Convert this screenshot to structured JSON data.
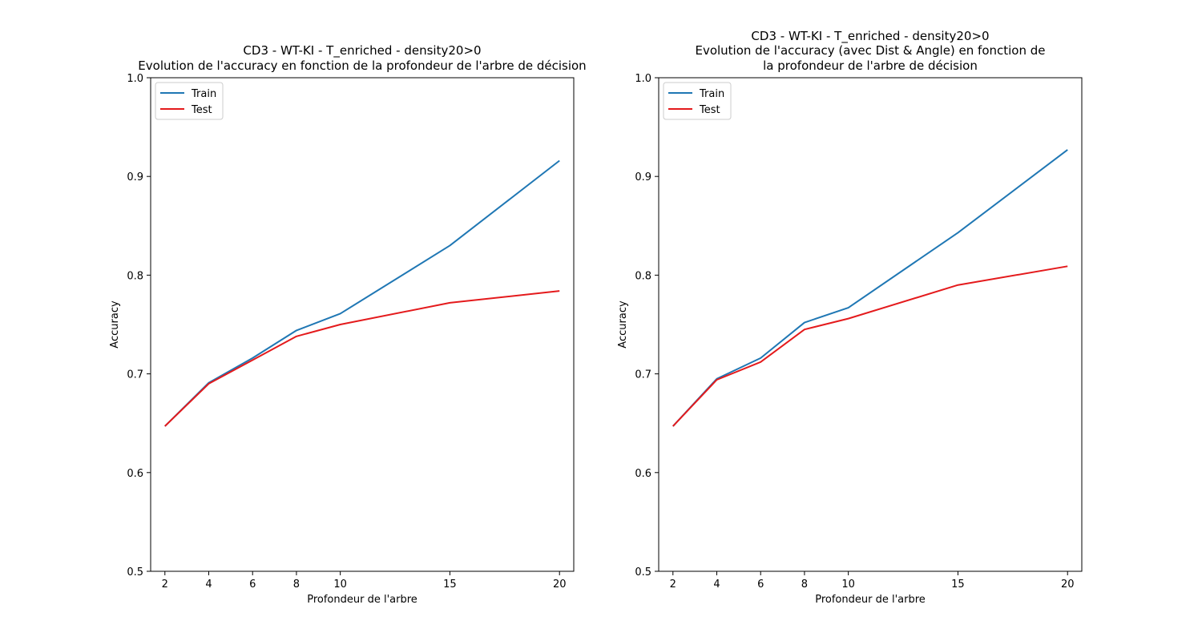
{
  "chart_data": [
    {
      "type": "line",
      "title": "CD3 - WT-KI - T_enriched - density20>0",
      "subtitle": "Evolution de l'accuracy en fonction de la profondeur de l'arbre de décision",
      "xlabel": "Profondeur de l'arbre",
      "ylabel": "Accuracy",
      "xlim": [
        1.35,
        20.65
      ],
      "ylim": [
        0.5,
        1.0
      ],
      "x": [
        2,
        4,
        6,
        8,
        10,
        15,
        20
      ],
      "xticks": [
        "2",
        "4",
        "6",
        "8",
        "10",
        "15",
        "20"
      ],
      "yticks": [
        "0.5",
        "0.6",
        "0.7",
        "0.8",
        "0.9",
        "1.0"
      ],
      "legend_position": "top-left",
      "grid": false,
      "series": [
        {
          "name": "Train",
          "color": "#1f77b4",
          "values": [
            0.647,
            0.691,
            0.716,
            0.744,
            0.761,
            0.83,
            0.916
          ]
        },
        {
          "name": "Test",
          "color": "#e41a1c",
          "values": [
            0.647,
            0.69,
            0.714,
            0.738,
            0.75,
            0.772,
            0.784
          ]
        }
      ]
    },
    {
      "type": "line",
      "title": "CD3 - WT-KI - T_enriched - density20>0",
      "subtitle": "Evolution de l'accuracy (avec Dist & Angle) en fonction de",
      "subtitle2": "la profondeur de l'arbre de décision",
      "xlabel": "Profondeur de l'arbre",
      "ylabel": "Accuracy",
      "xlim": [
        1.35,
        20.65
      ],
      "ylim": [
        0.5,
        1.0
      ],
      "x": [
        2,
        4,
        6,
        8,
        10,
        15,
        20
      ],
      "xticks": [
        "2",
        "4",
        "6",
        "8",
        "10",
        "15",
        "20"
      ],
      "yticks": [
        "0.5",
        "0.6",
        "0.7",
        "0.8",
        "0.9",
        "1.0"
      ],
      "legend_position": "top-left",
      "grid": false,
      "series": [
        {
          "name": "Train",
          "color": "#1f77b4",
          "values": [
            0.647,
            0.695,
            0.716,
            0.752,
            0.767,
            0.843,
            0.927
          ]
        },
        {
          "name": "Test",
          "color": "#e41a1c",
          "values": [
            0.647,
            0.694,
            0.712,
            0.745,
            0.756,
            0.79,
            0.809
          ]
        }
      ]
    }
  ]
}
